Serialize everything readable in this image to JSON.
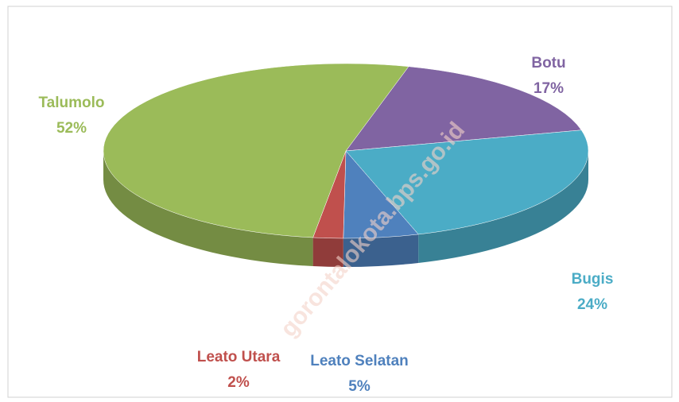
{
  "chart_data": {
    "type": "pie",
    "categories": [
      "Botu",
      "Bugis",
      "Leato Selatan",
      "Leato Utara",
      "Talumolo"
    ],
    "values": [
      17,
      24,
      5,
      2,
      52
    ],
    "value_labels": [
      "17%",
      "24%",
      "5%",
      "2%",
      "52%"
    ],
    "colors": [
      "#8064a2",
      "#4bacc6",
      "#4f81bd",
      "#c0504d",
      "#9bbb59"
    ],
    "watermark": "gorontalokota.bps.go.id"
  }
}
